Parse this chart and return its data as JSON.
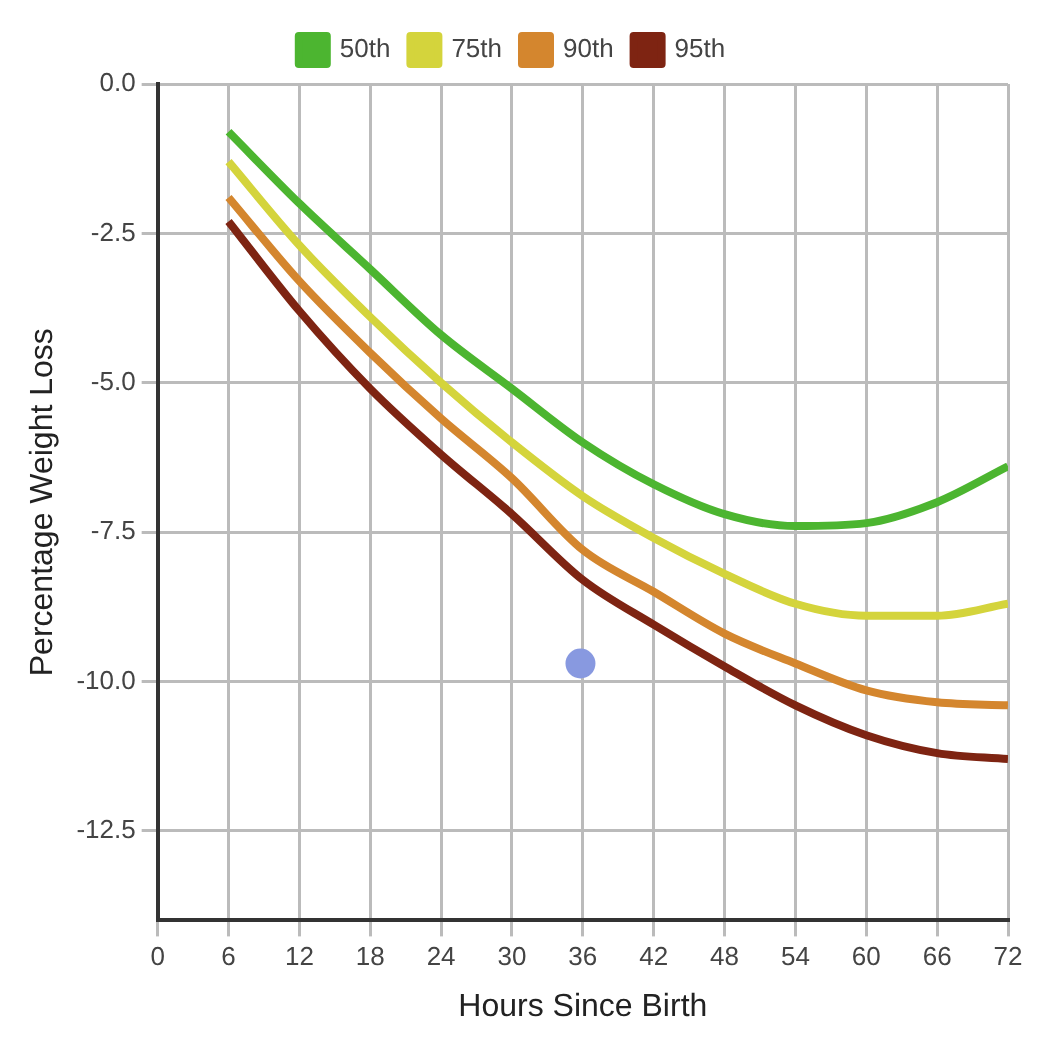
{
  "chart_data": {
    "type": "line",
    "xlabel": "Hours Since Birth",
    "ylabel": "Percentage Weight Loss",
    "x": [
      6,
      12,
      18,
      24,
      30,
      36,
      42,
      48,
      54,
      60,
      66,
      72
    ],
    "series": [
      {
        "name": "50th",
        "color": "#4cb530",
        "values": [
          -0.8,
          -2.0,
          -3.1,
          -4.2,
          -5.1,
          -6.0,
          -6.7,
          -7.2,
          -7.4,
          -7.35,
          -7.0,
          -6.4
        ]
      },
      {
        "name": "75th",
        "color": "#d4d43c",
        "values": [
          -1.3,
          -2.7,
          -3.9,
          -5.0,
          -6.0,
          -6.9,
          -7.6,
          -8.2,
          -8.7,
          -8.9,
          -8.9,
          -8.7
        ]
      },
      {
        "name": "90th",
        "color": "#d4862e",
        "values": [
          -1.9,
          -3.3,
          -4.5,
          -5.6,
          -6.6,
          -7.8,
          -8.5,
          -9.2,
          -9.7,
          -10.15,
          -10.35,
          -10.4
        ]
      },
      {
        "name": "95th",
        "color": "#7e2412",
        "values": [
          -2.3,
          -3.8,
          -5.1,
          -6.2,
          -7.2,
          -8.3,
          -9.05,
          -9.75,
          -10.4,
          -10.9,
          -11.2,
          -11.3
        ]
      },
      {
        "type": "scatter",
        "marker": "circle",
        "color": "#8899e0",
        "x": [
          35.8
        ],
        "values": [
          -9.7
        ]
      }
    ],
    "xlim": [
      0,
      72
    ],
    "xticks": [
      0,
      6,
      12,
      18,
      24,
      30,
      36,
      42,
      48,
      54,
      60,
      66,
      72
    ],
    "ylim": [
      -14,
      0
    ],
    "yticks": [
      {
        "value": 0,
        "label": "0.0"
      },
      {
        "value": -2.5,
        "label": "-2.5"
      },
      {
        "value": -5,
        "label": "-5.0"
      },
      {
        "value": -7.5,
        "label": "-7.5"
      },
      {
        "value": -10,
        "label": "-10.0"
      },
      {
        "value": -12.5,
        "label": "-12.5"
      }
    ],
    "grid": true,
    "legend": "top",
    "marker": "none",
    "line_style": "solid"
  }
}
